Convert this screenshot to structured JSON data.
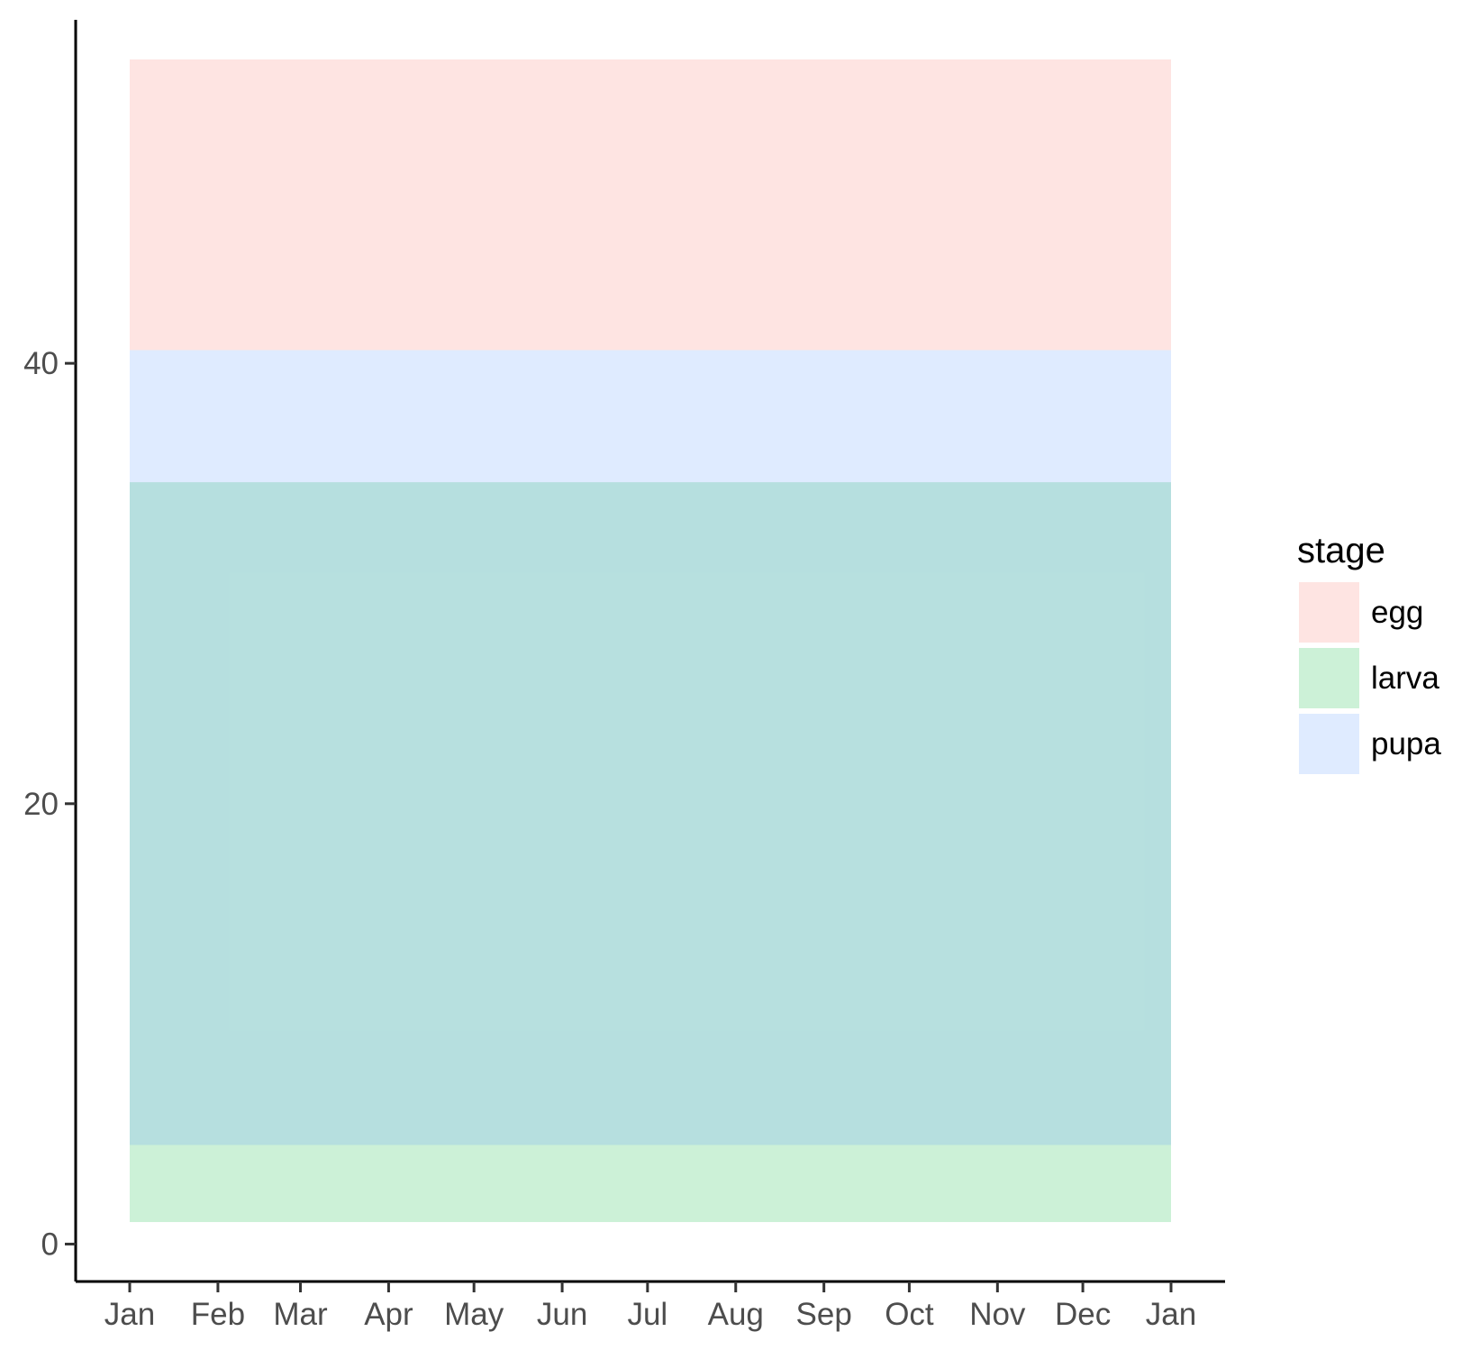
{
  "chart_data": {
    "type": "area",
    "x_axis": {
      "kind": "date",
      "tick_labels": [
        "Jan",
        "Feb",
        "Mar",
        "Apr",
        "May",
        "Jun",
        "Jul",
        "Aug",
        "Sep",
        "Oct",
        "Nov",
        "Dec",
        "Jan"
      ],
      "tick_dates": [
        "2000-01-01",
        "2000-02-01",
        "2000-03-01",
        "2000-04-01",
        "2000-05-01",
        "2000-06-01",
        "2000-07-01",
        "2000-08-01",
        "2000-09-01",
        "2000-10-01",
        "2000-11-01",
        "2000-12-01",
        "2001-01-01"
      ],
      "range": [
        "1999-12-13",
        "2001-01-20"
      ]
    },
    "y_axis": {
      "ticks": [
        0,
        20,
        40
      ],
      "range": [
        -1.7,
        55.6
      ]
    },
    "series": [
      {
        "name": "egg",
        "color": "#F8766D",
        "bands": [
          {
            "x_start": "2000-01-01",
            "x_end": "2001-01-01",
            "y_min": 40.6,
            "y_max": 53.8
          }
        ]
      },
      {
        "name": "larva",
        "color": "#00BA38",
        "bands": [
          {
            "x_start": "2000-01-01",
            "x_end": "2001-01-01",
            "y_min": 1.0,
            "y_max": 34.6
          }
        ]
      },
      {
        "name": "pupa",
        "color": "#619CFF",
        "bands": [
          {
            "x_start": "2000-01-01",
            "x_end": "2001-01-01",
            "y_min": 4.5,
            "y_max": 40.6
          }
        ]
      }
    ],
    "fill_alpha": 0.2,
    "legend": {
      "title": "stage",
      "position": "right",
      "entries": [
        {
          "label": "egg",
          "color": "#F8766D"
        },
        {
          "label": "larva",
          "color": "#00BA38"
        },
        {
          "label": "pupa",
          "color": "#619CFF"
        }
      ]
    },
    "grid": false,
    "title": "",
    "xlabel": "",
    "ylabel": ""
  }
}
